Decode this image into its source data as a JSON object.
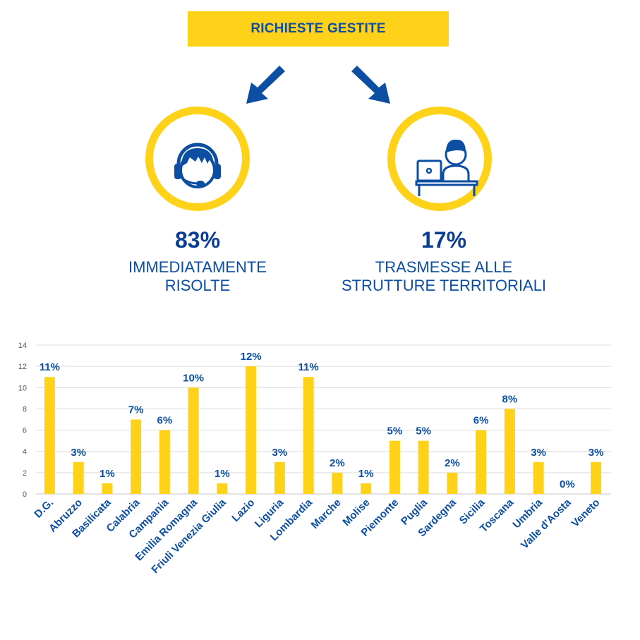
{
  "header": {
    "title": "RICHIESTE GESTITE"
  },
  "left": {
    "percent": "83%",
    "line1": "IMMEDIATAMENTE",
    "line2": "RISOLTE",
    "icon": "headset-operator-icon"
  },
  "right": {
    "percent": "17%",
    "line1": "TRASMESSE ALLE",
    "line2": "STRUTTURE TERRITORIALI",
    "icon": "desk-laptop-worker-icon"
  },
  "colors": {
    "blue": "#0b4ea2",
    "yellow": "#ffd21a"
  },
  "chart_data": {
    "type": "bar",
    "title": "",
    "xlabel": "",
    "ylabel": "",
    "ylim": [
      0,
      14
    ],
    "yticks": [
      0,
      2,
      4,
      6,
      8,
      10,
      12,
      14
    ],
    "grid": true,
    "categories": [
      "D.G.",
      "Abruzzo",
      "Basilicata",
      "Calabria",
      "Campania",
      "Emilia Romagna",
      "Friuli Venezia Giulia",
      "Lazio",
      "Liguria",
      "Lombardia",
      "Marche",
      "Molise",
      "Piemonte",
      "Puglia",
      "Sardegna",
      "Sicilia",
      "Toscana",
      "Umbria",
      "Valle d'Aosta",
      "Veneto"
    ],
    "values": [
      11,
      3,
      1,
      7,
      6,
      10,
      1,
      12,
      3,
      11,
      2,
      1,
      5,
      5,
      2,
      6,
      8,
      3,
      0,
      3
    ],
    "labels": [
      "11%",
      "3%",
      "1%",
      "7%",
      "6%",
      "10%",
      "1%",
      "12%",
      "3%",
      "11%",
      "2%",
      "1%",
      "5%",
      "5%",
      "2%",
      "6%",
      "8%",
      "3%",
      "0%",
      "3%"
    ]
  }
}
